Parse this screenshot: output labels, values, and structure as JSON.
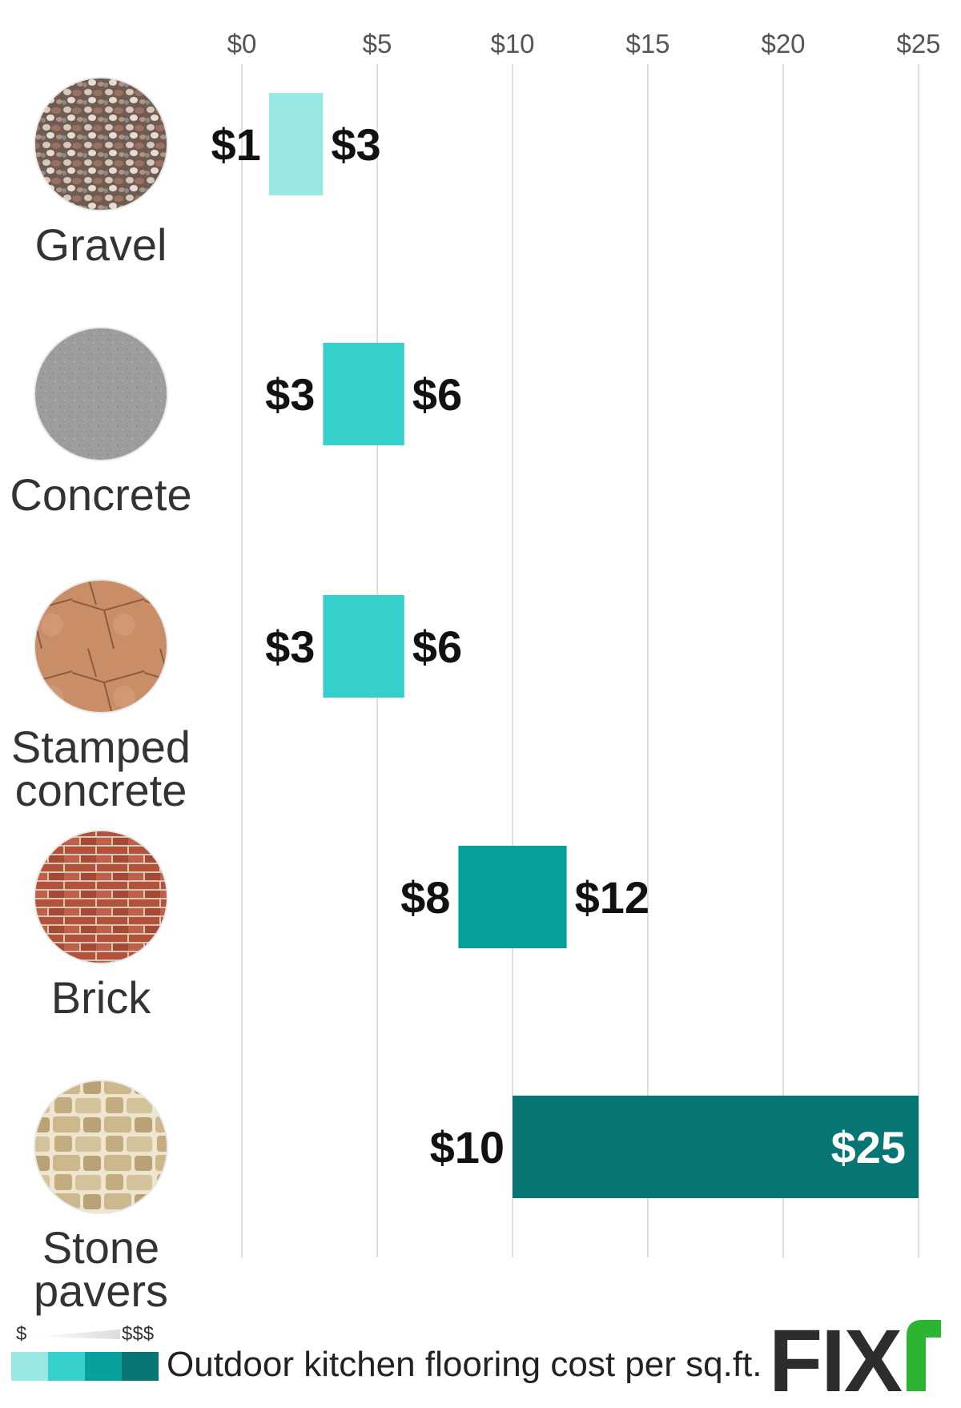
{
  "chart_data": {
    "type": "bar",
    "subtype": "floating-range",
    "orientation": "horizontal",
    "x_axis": {
      "range": [
        0,
        25
      ],
      "ticks": [
        0,
        5,
        10,
        15,
        20,
        25
      ],
      "tick_labels": [
        "$0",
        "$5",
        "$10",
        "$15",
        "$20",
        "$25"
      ],
      "position": "top",
      "grid": true
    },
    "categories": [
      {
        "name": "Gravel",
        "lines": [
          "Gravel"
        ],
        "icon": "gravel-texture-icon",
        "low": 1,
        "high": 3,
        "low_label": "$1",
        "high_label": "$3",
        "color": "#9ae8e4"
      },
      {
        "name": "Concrete",
        "lines": [
          "Concrete"
        ],
        "icon": "concrete-texture-icon",
        "low": 3,
        "high": 6,
        "low_label": "$3",
        "high_label": "$6",
        "color": "#35d0cc"
      },
      {
        "name": "Stamped concrete",
        "lines": [
          "Stamped",
          "concrete"
        ],
        "icon": "stamped-concrete-texture-icon",
        "low": 3,
        "high": 6,
        "low_label": "$3",
        "high_label": "$6",
        "color": "#35d0cc"
      },
      {
        "name": "Brick",
        "lines": [
          "Brick"
        ],
        "icon": "brick-texture-icon",
        "low": 8,
        "high": 12,
        "low_label": "$8",
        "high_label": "$12",
        "color": "#07a09d"
      },
      {
        "name": "Stone pavers",
        "lines": [
          "Stone",
          "pavers"
        ],
        "icon": "stone-texture-icon",
        "low": 10,
        "high": 25,
        "low_label": "$10",
        "high_label": "$25",
        "color": "#077574"
      }
    ]
  },
  "legend": {
    "title": "Outdoor kitchen flooring cost per sq.ft.",
    "scale_low": "$",
    "scale_high": "$$$",
    "colors": [
      "#9ae8e4",
      "#35d0cc",
      "#07a09d",
      "#077574"
    ]
  },
  "brand": {
    "logo_text": "FIX",
    "accent": "#2bb532"
  }
}
